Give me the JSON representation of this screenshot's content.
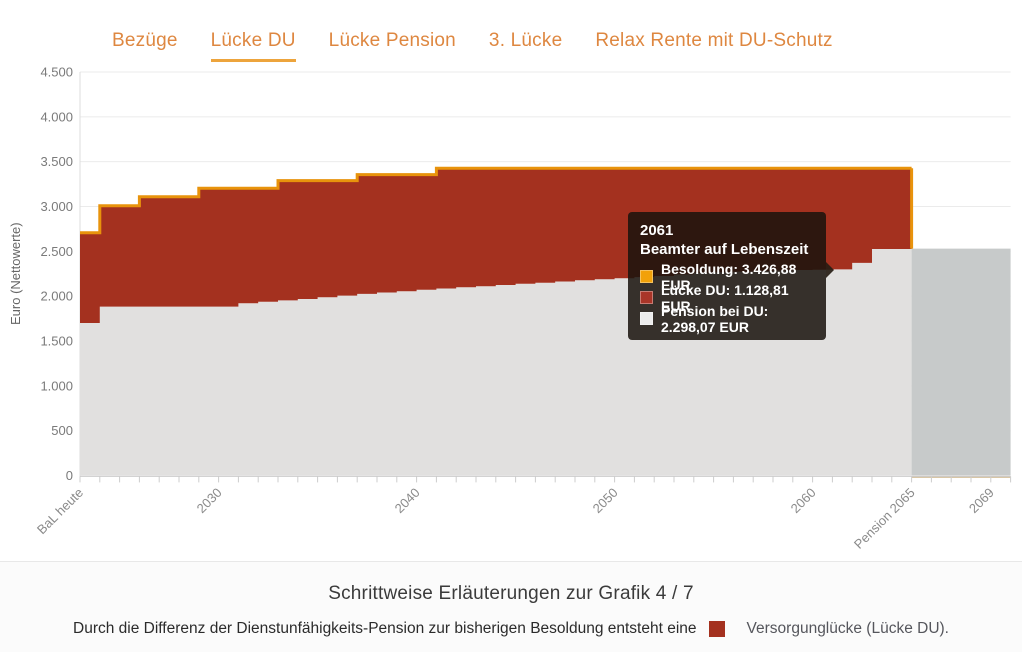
{
  "tabs": {
    "items": [
      {
        "label": "Bezüge",
        "active": false
      },
      {
        "label": "Lücke DU",
        "active": true
      },
      {
        "label": "Lücke Pension",
        "active": false
      },
      {
        "label": "3. Lücke",
        "active": false
      },
      {
        "label": "Relax Rente mit DU-Schutz",
        "active": false
      }
    ]
  },
  "chart_data": {
    "type": "area",
    "title": "",
    "xlabel": "",
    "ylabel": "Euro (Nettowerte)",
    "ylim": [
      0,
      4500
    ],
    "x_start_year": 2023,
    "x_end_year": 2070,
    "pension_start_year": 2065,
    "grid": "horizontal",
    "yticks": [
      {
        "label": "4.500",
        "value": 4500
      },
      {
        "label": "4.000",
        "value": 4000
      },
      {
        "label": "3.500",
        "value": 3500
      },
      {
        "label": "3.000",
        "value": 3000
      },
      {
        "label": "2.500",
        "value": 2500
      },
      {
        "label": "2.000",
        "value": 2000
      },
      {
        "label": "1.500",
        "value": 1500
      },
      {
        "label": "1.000",
        "value": 1000
      },
      {
        "label": "500",
        "value": 500
      },
      {
        "label": "0",
        "value": 0
      }
    ],
    "xticks": [
      {
        "label": "BaL heute",
        "year": 2023
      },
      {
        "label": "2030",
        "year": 2030
      },
      {
        "label": "2040",
        "year": 2040
      },
      {
        "label": "2050",
        "year": 2050
      },
      {
        "label": "2060",
        "year": 2060
      },
      {
        "label": "Pension 2065",
        "year": 2065
      },
      {
        "label": "2069",
        "year": 2069
      }
    ],
    "series": [
      {
        "name": "Besoldung",
        "type": "step-line",
        "color": "#E8930C",
        "start_year": 2023,
        "values": [
          2707,
          3009,
          3009,
          3109,
          3109,
          3109,
          3203,
          3203,
          3203,
          3203,
          3288,
          3288,
          3288,
          3288,
          3355,
          3355,
          3355,
          3355,
          3426.88,
          3426.88,
          3426.88,
          3426.88,
          3426.88,
          3426.88,
          3426.88,
          3426.88,
          3426.88,
          3426.88,
          3426.88,
          3426.88,
          3426.88,
          3426.88,
          3426.88,
          3426.88,
          3426.88,
          3426.88,
          3426.88,
          3426.88,
          3426.88,
          3426.88,
          3426.88,
          3426.88
        ]
      },
      {
        "name": "Lücke DU",
        "type": "step-area-between",
        "color": "#A4311F",
        "note": "area between Pension bei DU and Besoldung, years 2023-2064"
      },
      {
        "name": "Pension bei DU",
        "type": "step-area",
        "color": "#E1E0DF",
        "highlight_color_from_2065": "#C7CACA",
        "start_year": 2023,
        "values": [
          1700,
          1883,
          1883,
          1883,
          1883,
          1883,
          1883,
          1883,
          1920,
          1936,
          1952,
          1968,
          1988,
          2006,
          2025,
          2040,
          2055,
          2070,
          2085,
          2098,
          2111,
          2124,
          2137,
          2150,
          2163,
          2176,
          2189,
          2200,
          2212,
          2224,
          2242,
          2259,
          2266,
          2273,
          2280,
          2286,
          2291,
          2295,
          2298.07,
          2370,
          2525,
          2525,
          2530,
          2530,
          2530,
          2530,
          2530
        ]
      }
    ],
    "axis_zero_line_color": "#cccccc",
    "gridline_color": "#ebebeb"
  },
  "tooltip": {
    "title": "2061",
    "subtitle": "Beamter auf Lebenszeit",
    "rows": [
      {
        "text": "Besoldung: 3.426,88 EUR",
        "value": 3426.88,
        "color": "#F2A109"
      },
      {
        "text": "Lücke DU: 1.128,81 EUR",
        "value": 1128.81,
        "color": "#A93528"
      },
      {
        "text": "Pension bei DU: 2.298,07 EUR",
        "value": 2298.07,
        "color": "#ECECEC"
      }
    ]
  },
  "footer": {
    "title": "Schrittweise Erläuterungen zur Grafik 4 / 7",
    "caption_before": "Durch die Differenz der Dienstunfähigkeits-Pension zur bisherigen Besoldung entsteht eine",
    "legend_label": "Versorgunglücke (Lücke DU).",
    "legend_color": "#A4311F"
  }
}
